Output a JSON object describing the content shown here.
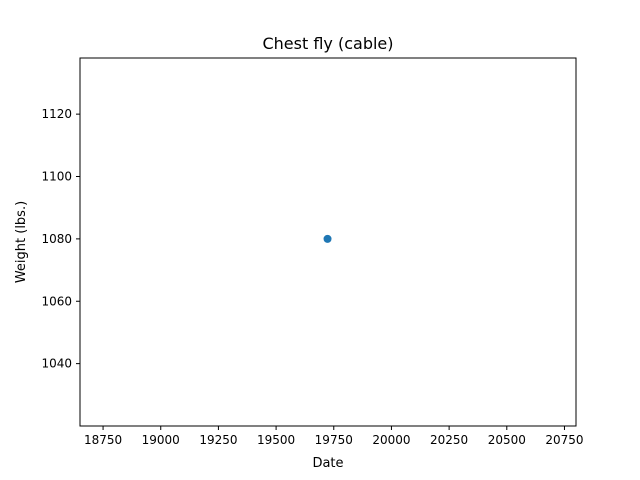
{
  "chart_data": {
    "type": "scatter",
    "title": "Chest fly (cable)",
    "xlabel": "Date",
    "ylabel": "Weight (lbs.)",
    "xlim": [
      18650,
      20800
    ],
    "ylim": [
      1020,
      1138
    ],
    "xticks": [
      18750,
      19000,
      19250,
      19500,
      19750,
      20000,
      20250,
      20500,
      20750
    ],
    "yticks": [
      1040,
      1060,
      1080,
      1100,
      1120
    ],
    "grid": false,
    "series": [
      {
        "color": "#1f77b4",
        "points": [
          {
            "x": 19723,
            "y": 1080
          }
        ]
      }
    ]
  }
}
